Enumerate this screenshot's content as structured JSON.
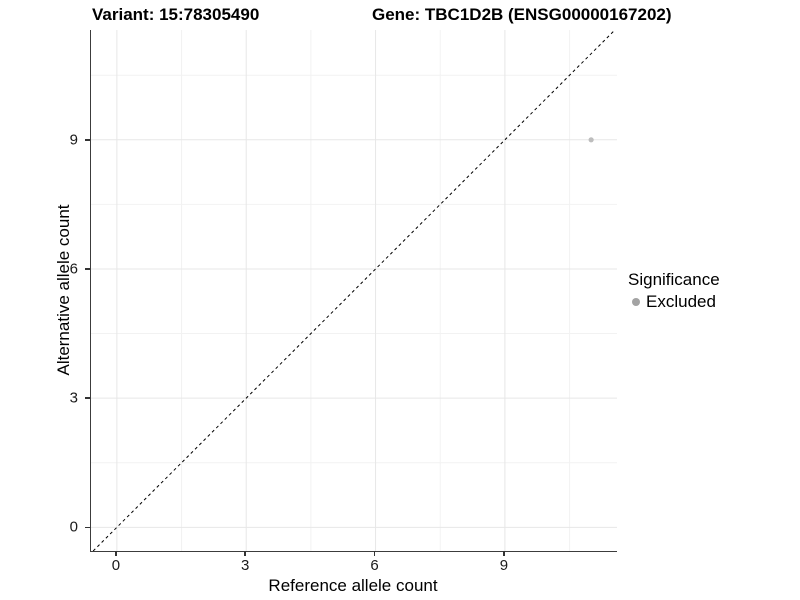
{
  "figure": {
    "title_variant": "Variant: 15:78305490",
    "title_gene": "Gene: TBC1D2B (ENSG00000167202)"
  },
  "chart_data": {
    "type": "scatter",
    "title": "Variant: 15:78305490 — Gene: TBC1D2B (ENSG00000167202)",
    "xlabel": "Reference allele count",
    "ylabel": "Alternative allele count",
    "x_ticks": [
      0,
      3,
      6,
      9
    ],
    "y_ticks": [
      0,
      3,
      6,
      9
    ],
    "x_minor_ticks": [
      1.5,
      4.5,
      7.5,
      10.5
    ],
    "y_minor_ticks": [
      1.5,
      4.5,
      7.5,
      10.5
    ],
    "xlim": [
      -0.6,
      11.6
    ],
    "ylim": [
      -0.55,
      11.55
    ],
    "grid": "major-and-minor",
    "points": [
      {
        "x": 11,
        "y": 9,
        "series": "Excluded"
      }
    ],
    "identity_line": {
      "style": "dashed",
      "slope": 1,
      "intercept": 0,
      "color": "#000000"
    },
    "legend": {
      "position": "right",
      "title": "Significance",
      "entries": [
        {
          "label": "Excluded",
          "color": "#a3a3a3"
        }
      ]
    },
    "colors": {
      "point": "#bdbdbd",
      "axis_line": "#3c3c3c",
      "grid_major": "#e7e7e7",
      "grid_minor": "#f2f2f2",
      "text": "#000000"
    }
  }
}
